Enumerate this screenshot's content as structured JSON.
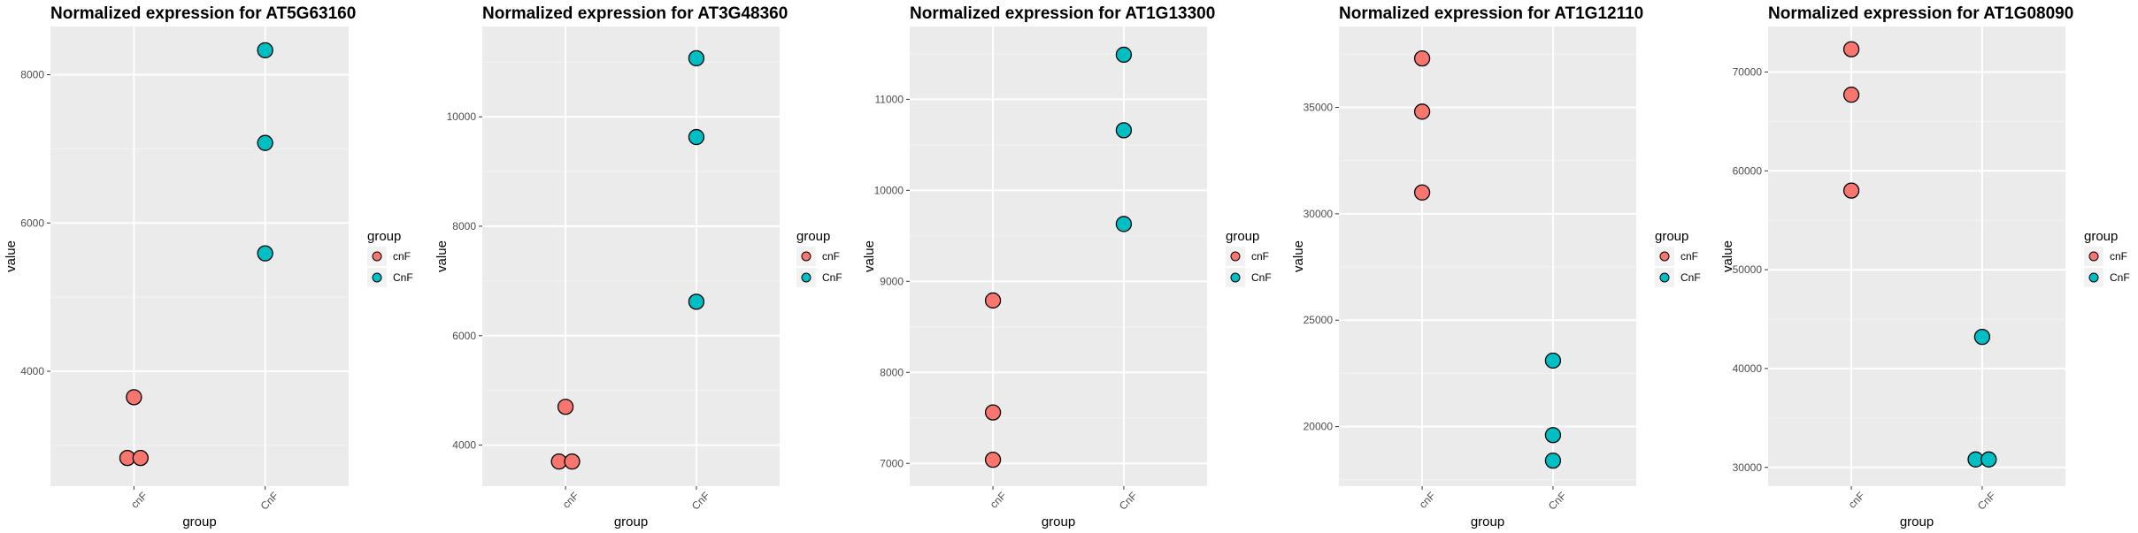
{
  "colors": {
    "cnF": "#F8766D",
    "CnF": "#00BFC4",
    "panel": "#EBEBEB",
    "grid_major": "#FFFFFF",
    "grid_minor": "#F4F4F4"
  },
  "chart_data": [
    {
      "type": "scatter",
      "title": "Normalized expression for  AT5G63160",
      "xlabel": "group",
      "ylabel": "value",
      "categories": [
        "cnF",
        "CnF"
      ],
      "ylim": [
        2450,
        8650
      ],
      "yticks": [
        4000,
        6000,
        8000
      ],
      "legend": {
        "title": "group",
        "entries": [
          "cnF",
          "CnF"
        ],
        "placement": "right"
      },
      "series": [
        {
          "name": "cnF",
          "x": [
            0.95,
            1.05,
            1
          ],
          "values": [
            2830,
            2830,
            3650
          ]
        },
        {
          "name": "CnF",
          "x": [
            2,
            2,
            2
          ],
          "values": [
            5590,
            7080,
            8330
          ]
        }
      ]
    },
    {
      "type": "scatter",
      "title": "Normalized expression for  AT3G48360",
      "xlabel": "group",
      "ylabel": "value",
      "categories": [
        "cnF",
        "CnF"
      ],
      "ylim": [
        3250,
        11650
      ],
      "yticks": [
        4000,
        6000,
        8000,
        10000
      ],
      "legend": {
        "title": "group",
        "entries": [
          "cnF",
          "CnF"
        ],
        "placement": "right"
      },
      "series": [
        {
          "name": "cnF",
          "x": [
            0.95,
            1.05,
            1
          ],
          "values": [
            3700,
            3700,
            4700
          ]
        },
        {
          "name": "CnF",
          "x": [
            2,
            2,
            2
          ],
          "values": [
            6620,
            9630,
            11070
          ]
        }
      ]
    },
    {
      "type": "scatter",
      "title": "Normalized expression for  AT1G13300",
      "xlabel": "group",
      "ylabel": "value",
      "categories": [
        "cnF",
        "CnF"
      ],
      "ylim": [
        6750,
        11800
      ],
      "yticks": [
        7000,
        8000,
        9000,
        10000,
        11000
      ],
      "legend": {
        "title": "group",
        "entries": [
          "cnF",
          "CnF"
        ],
        "placement": "right"
      },
      "series": [
        {
          "name": "cnF",
          "x": [
            1,
            1,
            1
          ],
          "values": [
            7040,
            7560,
            8790
          ]
        },
        {
          "name": "CnF",
          "x": [
            2,
            2,
            2
          ],
          "values": [
            9630,
            10660,
            11490
          ]
        }
      ]
    },
    {
      "type": "scatter",
      "title": "Normalized expression for  AT1G12110",
      "xlabel": "group",
      "ylabel": "value",
      "categories": [
        "cnF",
        "CnF"
      ],
      "ylim": [
        17200,
        38800
      ],
      "yticks": [
        20000,
        25000,
        30000,
        35000
      ],
      "legend": {
        "title": "group",
        "entries": [
          "cnF",
          "CnF"
        ],
        "placement": "right"
      },
      "series": [
        {
          "name": "cnF",
          "x": [
            1,
            1,
            1
          ],
          "values": [
            31000,
            34800,
            37300
          ]
        },
        {
          "name": "CnF",
          "x": [
            2,
            2,
            2
          ],
          "values": [
            18400,
            19600,
            23100
          ]
        }
      ]
    },
    {
      "type": "scatter",
      "title": "Normalized expression for  AT1G08090",
      "xlabel": "group",
      "ylabel": "value",
      "categories": [
        "cnF",
        "CnF"
      ],
      "ylim": [
        28100,
        74600
      ],
      "yticks": [
        30000,
        40000,
        50000,
        60000,
        70000
      ],
      "legend": {
        "title": "group",
        "entries": [
          "cnF",
          "CnF"
        ],
        "placement": "right"
      },
      "series": [
        {
          "name": "cnF",
          "x": [
            1,
            1,
            1
          ],
          "values": [
            58000,
            67700,
            72300
          ]
        },
        {
          "name": "CnF",
          "x": [
            1.95,
            2.05,
            2
          ],
          "values": [
            30800,
            30800,
            43200
          ]
        }
      ]
    }
  ]
}
